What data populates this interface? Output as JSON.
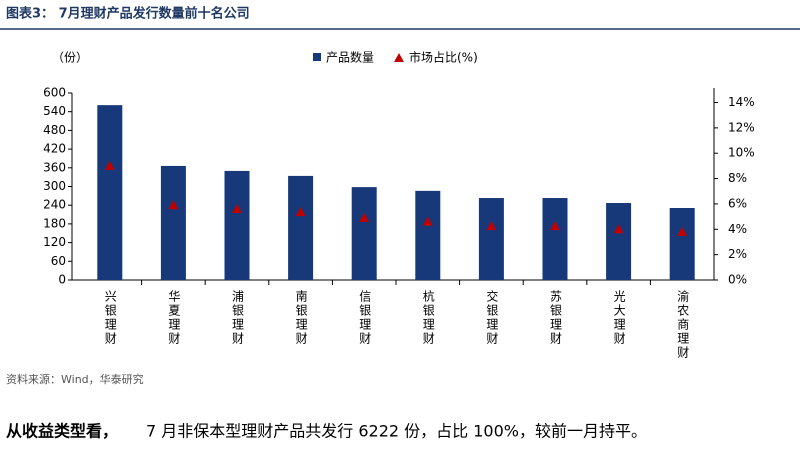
{
  "header": {
    "title": "图表3： 7月理财产品发行数量前十名公司"
  },
  "chart_data": {
    "type": "bar_line",
    "y_label": "（份）",
    "categories": [
      "兴银理财",
      "华夏理财",
      "浦银理财",
      "南银理财",
      "信银理财",
      "杭银理财",
      "交银理财",
      "苏银理财",
      "光大理财",
      "渝农商理财"
    ],
    "series": [
      {
        "name": "产品数量",
        "color": "#17397a",
        "values": [
          561,
          366,
          350,
          334,
          298,
          286,
          263,
          263,
          247,
          231
        ]
      },
      {
        "name": "市场占比(%)",
        "color": "#c00000",
        "axis": "y2",
        "values": [
          9.0,
          5.9,
          5.6,
          5.35,
          4.9,
          4.6,
          4.25,
          4.25,
          4.0,
          3.8
        ]
      }
    ],
    "ylim": [
      0,
      600
    ],
    "yticks": [
      0,
      60,
      120,
      180,
      240,
      300,
      360,
      420,
      480,
      540,
      600
    ],
    "y2lim": [
      0,
      14.75
    ],
    "y2ticks": [
      {
        "value": 0,
        "label": "0%"
      },
      {
        "value": 2,
        "label": "2%"
      },
      {
        "value": 4,
        "label": "4%"
      },
      {
        "value": 6,
        "label": "6%"
      },
      {
        "value": 8,
        "label": "8%"
      },
      {
        "value": 10,
        "label": "10%"
      },
      {
        "value": 12,
        "label": "12%"
      },
      {
        "value": 14,
        "label": "14%"
      }
    ]
  },
  "source": "资料来源：Wind，华泰研究",
  "paragraph": {
    "lead": "从收益类型看，",
    "text": "7 月非保本型理财产品共发行 6222 份，占比 100%，较前一月持平。"
  }
}
